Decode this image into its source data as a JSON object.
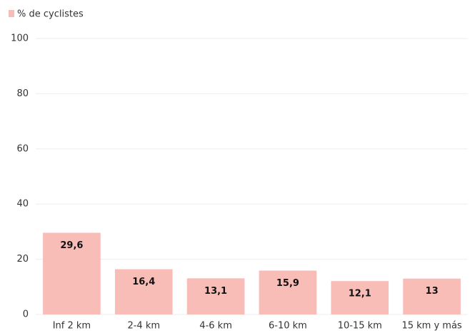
{
  "chart_data": {
    "type": "bar",
    "legend": "% de cyclistes",
    "categories": [
      "Inf 2 km",
      "2-4 km",
      "4-6 km",
      "6-10 km",
      "10-15 km",
      "15 km y más"
    ],
    "values": [
      29.6,
      16.4,
      13.1,
      15.9,
      12.1,
      13
    ],
    "value_labels": [
      "29,6",
      "16,4",
      "13,1",
      "15,9",
      "12,1",
      "13"
    ],
    "color": "#f9bdb8",
    "ylim": [
      0,
      100
    ],
    "yticks": [
      0,
      20,
      40,
      60,
      80,
      100
    ],
    "grid": true
  }
}
